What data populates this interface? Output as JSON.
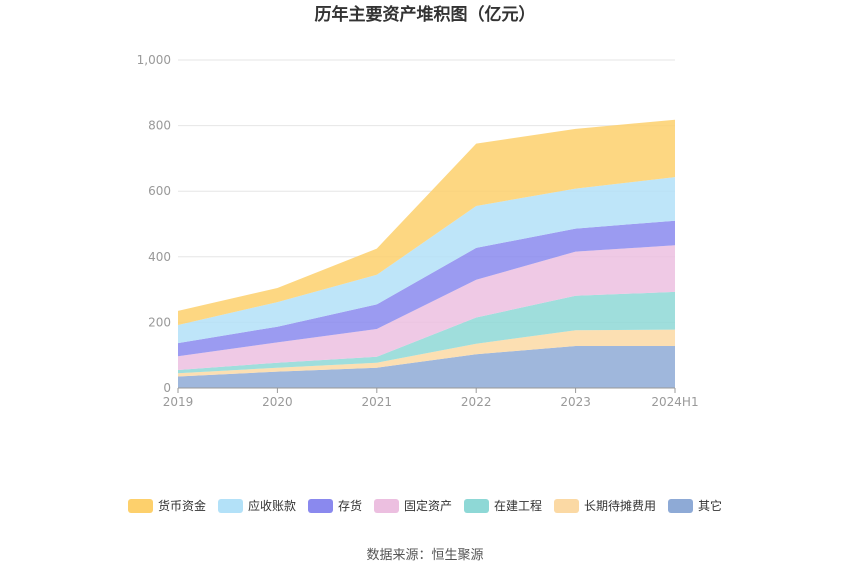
{
  "chart_data": {
    "type": "area",
    "stacked": true,
    "title": "历年主要资产堆积图（亿元）",
    "categories": [
      "2019",
      "2020",
      "2021",
      "2022",
      "2023",
      "2024H1"
    ],
    "ylim": [
      0,
      1000
    ],
    "yticks": [
      0,
      200,
      400,
      600,
      800,
      1000
    ],
    "ytick_labels": [
      "0",
      "200",
      "400",
      "600",
      "800",
      "1,000"
    ],
    "grid": true,
    "legend_position": "bottom",
    "series": [
      {
        "name": "其它",
        "color": "#8eaad6",
        "values": [
          35,
          50,
          62,
          103,
          128,
          128
        ]
      },
      {
        "name": "长期待摊费用",
        "color": "#fbd9a4",
        "values": [
          10,
          12,
          15,
          32,
          48,
          50
        ]
      },
      {
        "name": "在建工程",
        "color": "#8ed8d6",
        "values": [
          10,
          15,
          18,
          80,
          105,
          115
        ]
      },
      {
        "name": "固定资产",
        "color": "#ecbfe0",
        "values": [
          42,
          62,
          85,
          115,
          135,
          142
        ]
      },
      {
        "name": "存货",
        "color": "#8a89ee",
        "values": [
          40,
          48,
          75,
          97,
          70,
          75
        ]
      },
      {
        "name": "应收账款",
        "color": "#b3e1f8",
        "values": [
          55,
          75,
          90,
          128,
          122,
          133
        ]
      },
      {
        "name": "货币资金",
        "color": "#fdd06c",
        "values": [
          43,
          43,
          80,
          190,
          182,
          175
        ]
      }
    ],
    "legend_order": [
      "货币资金",
      "应收账款",
      "存货",
      "固定资产",
      "在建工程",
      "长期待摊费用",
      "其它"
    ]
  },
  "source_text": "数据来源：恒生聚源"
}
